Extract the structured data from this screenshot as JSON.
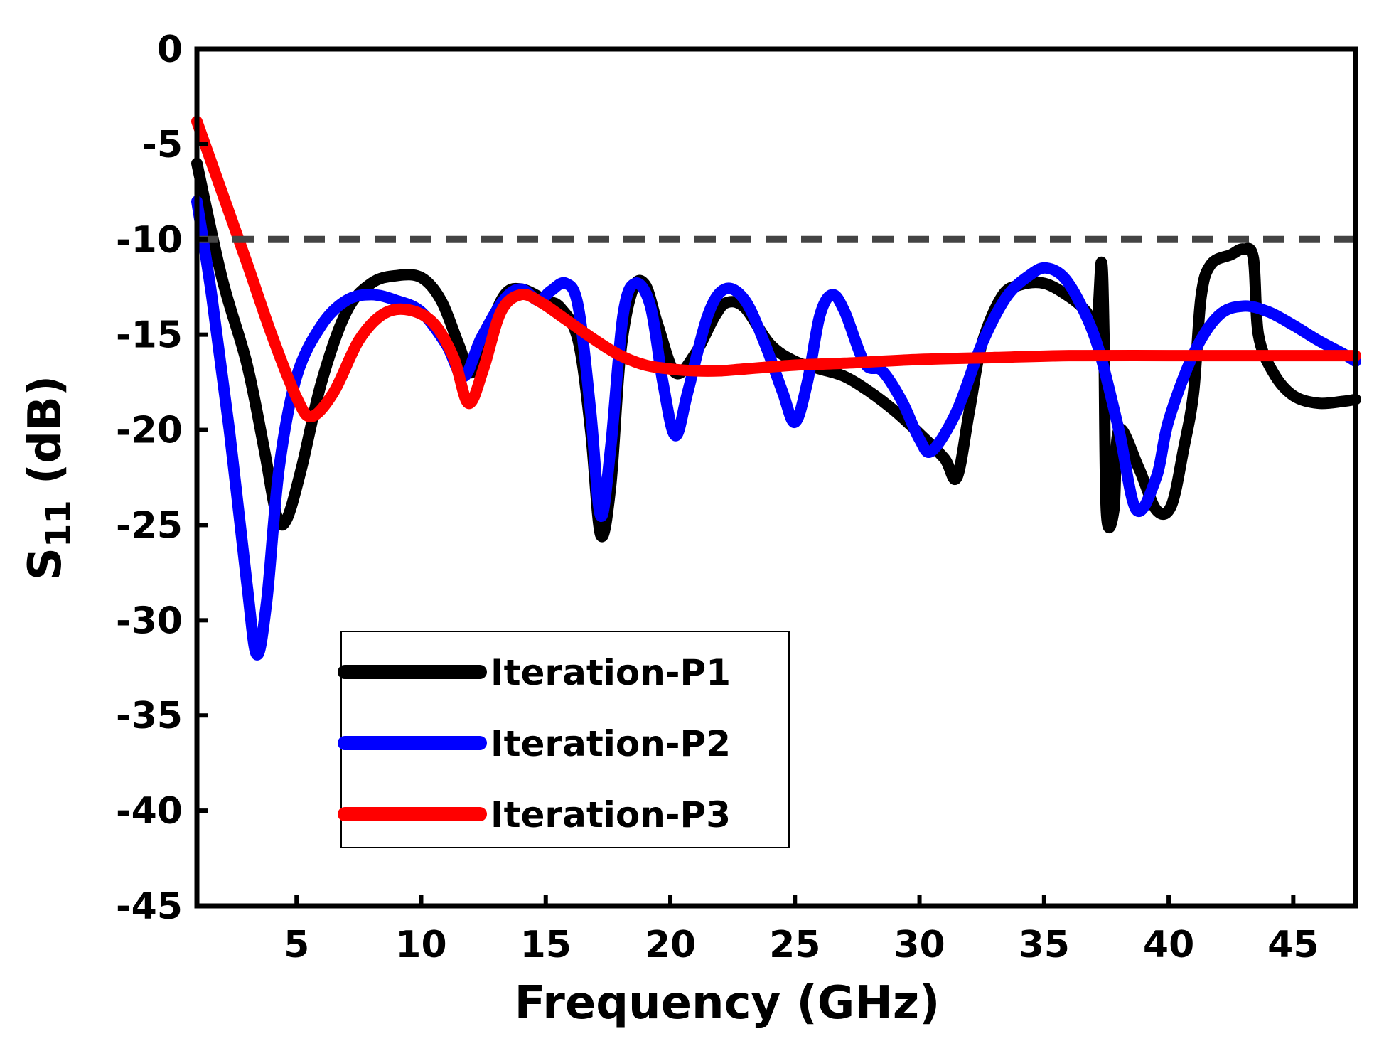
{
  "chart_data": {
    "type": "line",
    "title": "",
    "xlabel": "Frequency (GHz)",
    "ylabel": {
      "prefix": "S",
      "subscript": "11",
      "suffix": " (dB)"
    },
    "xlim": [
      1,
      47.5
    ],
    "ylim": [
      -45,
      0
    ],
    "xticks": [
      5,
      10,
      15,
      20,
      25,
      30,
      35,
      40,
      45
    ],
    "yticks": [
      0,
      -5,
      -10,
      -15,
      -20,
      -25,
      -30,
      -35,
      -40,
      -45
    ],
    "reference_line": {
      "y": -10,
      "style": "dashed",
      "color": "#444444"
    },
    "legend": {
      "placement": "lower-left"
    },
    "series": [
      {
        "name": "Iteration-P1",
        "color": "#000000",
        "points": [
          [
            1,
            -6
          ],
          [
            2,
            -12
          ],
          [
            3,
            -16.5
          ],
          [
            3.7,
            -21
          ],
          [
            4.2,
            -24.5
          ],
          [
            4.6,
            -24.7
          ],
          [
            5.2,
            -22
          ],
          [
            6,
            -17.5
          ],
          [
            7,
            -13.8
          ],
          [
            8,
            -12.3
          ],
          [
            9,
            -11.9
          ],
          [
            10,
            -12
          ],
          [
            10.8,
            -13.2
          ],
          [
            11.5,
            -15.5
          ],
          [
            12,
            -17
          ],
          [
            12.5,
            -15.5
          ],
          [
            13.3,
            -13
          ],
          [
            14,
            -12.6
          ],
          [
            15,
            -13.2
          ],
          [
            15.6,
            -13.6
          ],
          [
            16.3,
            -15.3
          ],
          [
            16.8,
            -20
          ],
          [
            17.2,
            -25.5
          ],
          [
            17.6,
            -23
          ],
          [
            18,
            -16
          ],
          [
            18.5,
            -12.6
          ],
          [
            19,
            -12.4
          ],
          [
            19.5,
            -14.5
          ],
          [
            20.2,
            -17
          ],
          [
            21,
            -16
          ],
          [
            21.8,
            -14
          ],
          [
            22.3,
            -13.3
          ],
          [
            23,
            -13.6
          ],
          [
            24,
            -15.5
          ],
          [
            25,
            -16.4
          ],
          [
            26,
            -16.8
          ],
          [
            27,
            -17.2
          ],
          [
            28,
            -18
          ],
          [
            29,
            -19
          ],
          [
            30,
            -20.2
          ],
          [
            31,
            -21.5
          ],
          [
            31.5,
            -22.5
          ],
          [
            32,
            -19
          ],
          [
            32.5,
            -15.5
          ],
          [
            33.3,
            -13
          ],
          [
            34,
            -12.4
          ],
          [
            35,
            -12.3
          ],
          [
            36,
            -13
          ],
          [
            36.7,
            -13.8
          ],
          [
            37.1,
            -14.7
          ],
          [
            37.3,
            -11.2
          ],
          [
            37.4,
            -15
          ],
          [
            37.5,
            -24.3
          ],
          [
            37.8,
            -24.2
          ],
          [
            38,
            -20
          ],
          [
            38.8,
            -22
          ],
          [
            39.5,
            -24.2
          ],
          [
            40.1,
            -24
          ],
          [
            40.6,
            -21
          ],
          [
            41,
            -18
          ],
          [
            41.3,
            -13
          ],
          [
            41.7,
            -11.3
          ],
          [
            42.5,
            -10.8
          ],
          [
            43,
            -10.5
          ],
          [
            43.4,
            -11
          ],
          [
            43.6,
            -15
          ],
          [
            44.2,
            -17
          ],
          [
            45,
            -18.2
          ],
          [
            46,
            -18.6
          ],
          [
            47,
            -18.5
          ],
          [
            47.5,
            -18.4
          ]
        ]
      },
      {
        "name": "Iteration-P2",
        "color": "#0000ff",
        "points": [
          [
            1,
            -8
          ],
          [
            1.6,
            -13
          ],
          [
            2.3,
            -20
          ],
          [
            3,
            -28
          ],
          [
            3.4,
            -31.8
          ],
          [
            3.8,
            -29
          ],
          [
            4.3,
            -22
          ],
          [
            5,
            -17.2
          ],
          [
            6,
            -14.5
          ],
          [
            7,
            -13.2
          ],
          [
            8,
            -12.9
          ],
          [
            9,
            -13.2
          ],
          [
            10,
            -13.8
          ],
          [
            11,
            -15.5
          ],
          [
            11.7,
            -17.2
          ],
          [
            12.4,
            -15.2
          ],
          [
            13.3,
            -13.2
          ],
          [
            14,
            -12.6
          ],
          [
            14.7,
            -13.2
          ],
          [
            15.2,
            -12.7
          ],
          [
            15.8,
            -12.3
          ],
          [
            16.3,
            -13.5
          ],
          [
            16.8,
            -19
          ],
          [
            17.2,
            -24.5
          ],
          [
            17.6,
            -21
          ],
          [
            18.1,
            -14
          ],
          [
            18.6,
            -12.3
          ],
          [
            19.2,
            -13.5
          ],
          [
            19.7,
            -17.5
          ],
          [
            20.2,
            -20.3
          ],
          [
            20.7,
            -18
          ],
          [
            21.5,
            -14
          ],
          [
            22.2,
            -12.6
          ],
          [
            23,
            -13.2
          ],
          [
            23.8,
            -15.5
          ],
          [
            24.5,
            -18
          ],
          [
            25,
            -19.6
          ],
          [
            25.5,
            -17.5
          ],
          [
            26,
            -14
          ],
          [
            26.5,
            -12.9
          ],
          [
            27,
            -13.8
          ],
          [
            27.8,
            -16.5
          ],
          [
            28.5,
            -16.9
          ],
          [
            29.3,
            -18.5
          ],
          [
            30,
            -20.5
          ],
          [
            30.5,
            -21.1
          ],
          [
            31.5,
            -19
          ],
          [
            32.5,
            -15.5
          ],
          [
            33.5,
            -13
          ],
          [
            34.5,
            -11.8
          ],
          [
            35.1,
            -11.5
          ],
          [
            35.8,
            -12
          ],
          [
            36.5,
            -13.5
          ],
          [
            37.2,
            -15.8
          ],
          [
            38,
            -20
          ],
          [
            38.7,
            -24.2
          ],
          [
            39.5,
            -22.5
          ],
          [
            40,
            -19.5
          ],
          [
            41,
            -16
          ],
          [
            42,
            -14
          ],
          [
            43,
            -13.5
          ],
          [
            44,
            -13.8
          ],
          [
            45,
            -14.5
          ],
          [
            46,
            -15.3
          ],
          [
            47,
            -16
          ],
          [
            47.5,
            -16.4
          ]
        ]
      },
      {
        "name": "Iteration-P3",
        "color": "#ff0000",
        "points": [
          [
            1,
            -3.8
          ],
          [
            2,
            -7.5
          ],
          [
            3,
            -11.2
          ],
          [
            4,
            -15
          ],
          [
            5,
            -18.3
          ],
          [
            5.6,
            -19.3
          ],
          [
            6.5,
            -18
          ],
          [
            7.5,
            -15.3
          ],
          [
            8.5,
            -13.9
          ],
          [
            9.5,
            -13.7
          ],
          [
            10.5,
            -14.4
          ],
          [
            11.3,
            -16.2
          ],
          [
            11.9,
            -18.6
          ],
          [
            12.5,
            -16.8
          ],
          [
            13.2,
            -13.8
          ],
          [
            14,
            -12.9
          ],
          [
            14.8,
            -13.3
          ],
          [
            15.8,
            -14.2
          ],
          [
            17,
            -15.3
          ],
          [
            18,
            -16.1
          ],
          [
            19,
            -16.6
          ],
          [
            20,
            -16.8
          ],
          [
            21,
            -16.9
          ],
          [
            22,
            -16.9
          ],
          [
            23,
            -16.8
          ],
          [
            25,
            -16.6
          ],
          [
            27,
            -16.5
          ],
          [
            30,
            -16.3
          ],
          [
            33,
            -16.2
          ],
          [
            36,
            -16.1
          ],
          [
            40,
            -16.1
          ],
          [
            44,
            -16.1
          ],
          [
            47.5,
            -16.1
          ]
        ]
      }
    ]
  }
}
